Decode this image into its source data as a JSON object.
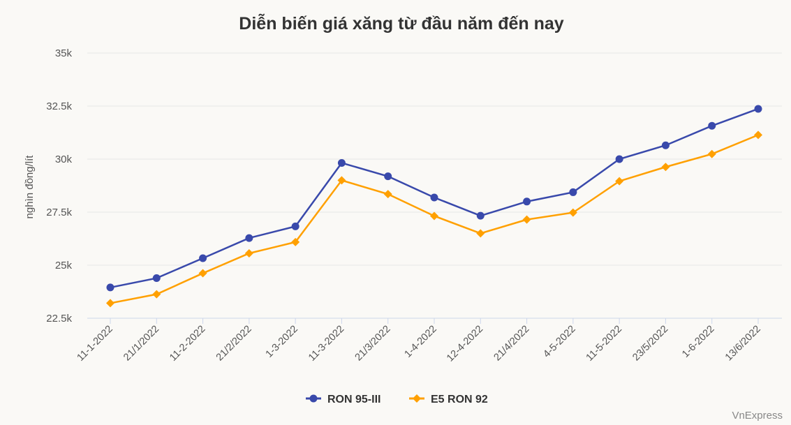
{
  "chart_data": {
    "type": "line",
    "title": "Diễn biến giá xăng từ đầu năm đến nay",
    "xlabel": "",
    "ylabel": "nghìn đồng/lít",
    "ylim": [
      22500,
      35000
    ],
    "yticks": [
      22500,
      25000,
      27500,
      30000,
      32500,
      35000
    ],
    "ytick_labels": [
      "22.5k",
      "25k",
      "27.5k",
      "30k",
      "32.5k",
      "35k"
    ],
    "grid": true,
    "legend_position": "bottom",
    "categories": [
      "11-1-2022",
      "21/1/2022",
      "11-2-2022",
      "21/2/2022",
      "1-3-2022",
      "11-3-2022",
      "21/3/2022",
      "1-4-2022",
      "12-4-2022",
      "21/4/2022",
      "4-5-2022",
      "11-5-2022",
      "23/5/2022",
      "1-6-2022",
      "13/6/2022"
    ],
    "series": [
      {
        "name": "RON 95-III",
        "color": "#3949ab",
        "marker": "circle",
        "values": [
          23950,
          24390,
          25330,
          26280,
          26830,
          29820,
          29190,
          28190,
          27330,
          28000,
          28440,
          30000,
          30650,
          31570,
          32370
        ]
      },
      {
        "name": "E5 RON 92",
        "color": "#ffa000",
        "marker": "diamond",
        "values": [
          23210,
          23630,
          24620,
          25560,
          26090,
          29000,
          28350,
          27320,
          26500,
          27150,
          27480,
          28960,
          29630,
          30240,
          31140
        ]
      }
    ]
  },
  "credit": "VnExpress"
}
